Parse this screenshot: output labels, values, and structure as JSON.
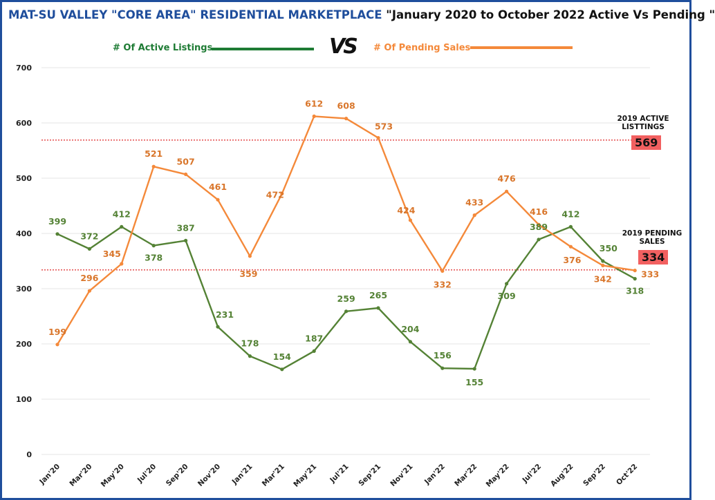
{
  "title": {
    "part1": "MAT-SU VALLEY \"CORE AREA\" RESIDENTIAL MARKETPLACE",
    "part2": " \"January 2020 to October 2022 Active Vs Pending  \""
  },
  "legend": {
    "active_label": "# Of Active Listings",
    "pending_label": "# Of Pending Sales",
    "vs_text": "VS"
  },
  "colors": {
    "active": "#548235",
    "active_legend": "#1e7b34",
    "pending": "#f4893a",
    "pending_text": "#d9762b",
    "reference": "#e23b3b",
    "reference_box": "#f26060",
    "grid": "#e6e6e6",
    "border": "#1f4e9c"
  },
  "reference_lines": {
    "active": {
      "label_line1": "2019 ACTIVE",
      "label_line2": "LISTTINGS",
      "value": 569,
      "display": "569"
    },
    "pending": {
      "label_line1": "2019 PENDING",
      "label_line2": "SALES",
      "value": 334,
      "display": "334"
    }
  },
  "chart_data": {
    "type": "line",
    "x": [
      "Jan'20",
      "Mar'20",
      "May'20",
      "Jul'20",
      "Sep'20",
      "Nov'20",
      "Jan'21",
      "Mar'21",
      "May'21",
      "Jul'21",
      "Sep'21",
      "Nov'21",
      "Jan'22",
      "Mar'22",
      "May'22",
      "Jul'22",
      "Aug'22",
      "Sep'22",
      "Oct'22"
    ],
    "series": [
      {
        "name": "# Of Active Listings",
        "values": [
          399,
          372,
          412,
          378,
          387,
          231,
          178,
          154,
          187,
          259,
          265,
          204,
          156,
          155,
          309,
          389,
          412,
          350,
          318
        ]
      },
      {
        "name": "# Of Pending Sales",
        "values": [
          199,
          296,
          345,
          521,
          507,
          461,
          359,
          472,
          612,
          608,
          573,
          424,
          332,
          433,
          476,
          416,
          376,
          342,
          333
        ]
      }
    ],
    "ylim": [
      0,
      700
    ],
    "yticks": [
      0,
      100,
      200,
      300,
      400,
      500,
      600,
      700
    ],
    "grid": true,
    "legend": "top"
  }
}
